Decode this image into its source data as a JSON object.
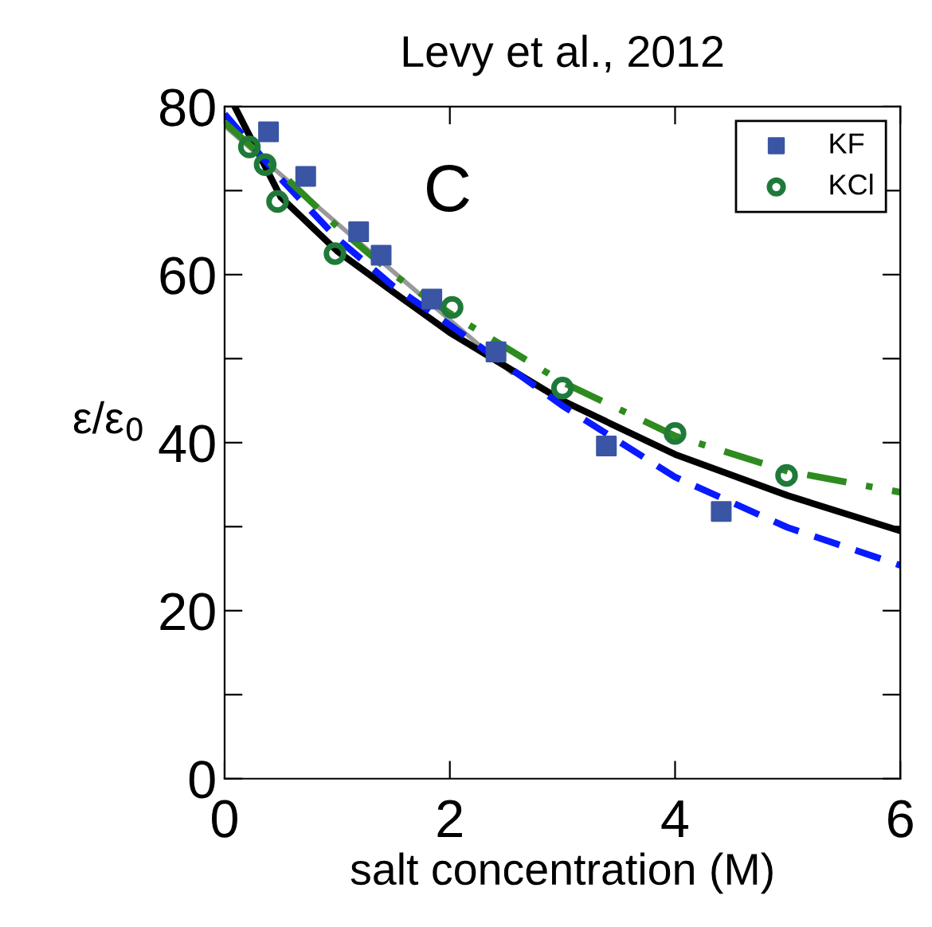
{
  "chart_data": {
    "type": "scatter",
    "title": "Levy et al., 2012",
    "xlabel": "salt concentration (M)",
    "ylabel": "ε/ε$_{0}$",
    "annotations": [
      "C"
    ],
    "xlim": [
      0,
      6
    ],
    "xticks": [
      0,
      2,
      4,
      6
    ],
    "ylim": [
      0,
      80
    ],
    "yticks": [
      0,
      {
        "value": 10,
        "label": null
      },
      20,
      {
        "value": 30,
        "label": null
      },
      40,
      {
        "value": 50,
        "label": null
      },
      60,
      {
        "value": 70,
        "label": null
      },
      80
    ],
    "grid": false,
    "legend": "top right",
    "series": [
      {
        "type": "line",
        "color": "#999999",
        "line_style": "solid",
        "x": [
          0,
          1.18,
          2.55
        ],
        "values": [
          77.7,
          64.0,
          48.3
        ]
      },
      {
        "type": "line",
        "color": "#000000",
        "line_style": "solid",
        "x": [
          0.09,
          0.5,
          1,
          1.5,
          2,
          3,
          4,
          5,
          6
        ],
        "values": [
          80,
          69.2,
          62.8,
          57.9,
          53.1,
          45.0,
          38.6,
          33.7,
          29.5
        ]
      },
      {
        "type": "line",
        "color": "#0a1aff",
        "line_style": "dashed",
        "x": [
          0,
          0.5,
          1,
          1.5,
          2,
          3,
          4,
          5,
          6
        ],
        "values": [
          79.1,
          71.4,
          64.3,
          58.6,
          54.0,
          44.4,
          35.9,
          29.9,
          25.4
        ]
      },
      {
        "type": "line",
        "color": "#2e8b1e",
        "line_style": "dashdot",
        "x": [
          0,
          0.5,
          1,
          1.5,
          2,
          3,
          4,
          5,
          6
        ],
        "values": [
          78.1,
          72.1,
          65.7,
          60.0,
          55.4,
          47.2,
          40.8,
          36.6,
          34.1
        ]
      },
      {
        "name": "KF",
        "color": "#3a55a4",
        "marker": "square",
        "x": [
          0.39,
          0.72,
          1.19,
          1.39,
          1.84,
          2.41,
          3.39,
          4.41
        ],
        "values": [
          77.0,
          71.7,
          65.1,
          62.3,
          57.1,
          50.8,
          39.6,
          31.8
        ]
      },
      {
        "name": "KCl",
        "color": "#1f7a3a",
        "marker": "circle",
        "x": [
          0.22,
          0.36,
          0.47,
          0.98,
          2.02,
          3.0,
          4.0,
          4.99
        ],
        "values": [
          75.2,
          73.1,
          68.7,
          62.5,
          56.1,
          46.5,
          41.1,
          36.1
        ]
      }
    ]
  }
}
